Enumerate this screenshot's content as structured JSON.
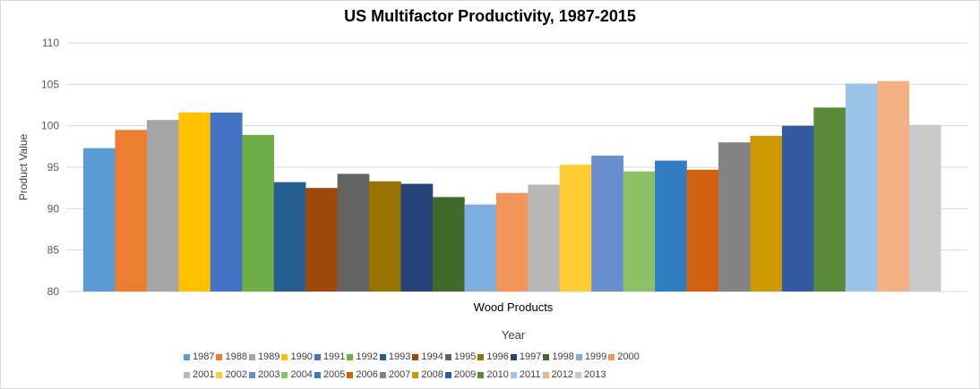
{
  "chart_data": {
    "type": "bar",
    "title": "US Multifactor Productivity, 1987-2015",
    "xlabel": "Year",
    "ylabel": "Product Value",
    "categories": [
      "Wood Products"
    ],
    "ylim": [
      80,
      110
    ],
    "yticks": [
      "80",
      "85",
      "90",
      "95",
      "100",
      "105",
      "110"
    ],
    "grid": true,
    "legend_position": "bottom",
    "series": [
      {
        "name": "1987",
        "values": [
          97.3
        ],
        "color": "#5b9bd5"
      },
      {
        "name": "1988",
        "values": [
          99.5
        ],
        "color": "#ed7d31"
      },
      {
        "name": "1989",
        "values": [
          100.7
        ],
        "color": "#a5a5a5"
      },
      {
        "name": "1990",
        "values": [
          101.6
        ],
        "color": "#ffc000"
      },
      {
        "name": "1991",
        "values": [
          101.6
        ],
        "color": "#4472c4"
      },
      {
        "name": "1992",
        "values": [
          98.9
        ],
        "color": "#70ad47"
      },
      {
        "name": "1993",
        "values": [
          93.2
        ],
        "color": "#255e91"
      },
      {
        "name": "1994",
        "values": [
          92.5
        ],
        "color": "#9e480e"
      },
      {
        "name": "1995",
        "values": [
          94.2
        ],
        "color": "#636363"
      },
      {
        "name": "1996",
        "values": [
          93.3
        ],
        "color": "#997300"
      },
      {
        "name": "1997",
        "values": [
          93.0
        ],
        "color": "#264478"
      },
      {
        "name": "1998",
        "values": [
          91.4
        ],
        "color": "#43682b"
      },
      {
        "name": "1999",
        "values": [
          90.5
        ],
        "color": "#7cafdd"
      },
      {
        "name": "2000",
        "values": [
          91.9
        ],
        "color": "#f1975a"
      },
      {
        "name": "2001",
        "values": [
          92.9
        ],
        "color": "#b7b7b7"
      },
      {
        "name": "2002",
        "values": [
          95.3
        ],
        "color": "#ffcd33"
      },
      {
        "name": "2003",
        "values": [
          96.4
        ],
        "color": "#698ed0"
      },
      {
        "name": "2004",
        "values": [
          94.5
        ],
        "color": "#8cc168"
      },
      {
        "name": "2005",
        "values": [
          95.8
        ],
        "color": "#327dc2"
      },
      {
        "name": "2006",
        "values": [
          94.7
        ],
        "color": "#d26012"
      },
      {
        "name": "2007",
        "values": [
          98.0
        ],
        "color": "#848484"
      },
      {
        "name": "2008",
        "values": [
          98.8
        ],
        "color": "#cc9a00"
      },
      {
        "name": "2009",
        "values": [
          100.0
        ],
        "color": "#335aa1"
      },
      {
        "name": "2010",
        "values": [
          102.2
        ],
        "color": "#5a8a39"
      },
      {
        "name": "2011",
        "values": [
          105.1
        ],
        "color": "#9dc3e6"
      },
      {
        "name": "2012",
        "values": [
          105.4
        ],
        "color": "#f4b183"
      },
      {
        "name": "2013",
        "values": [
          100.1
        ],
        "color": "#c9c9c9"
      }
    ]
  }
}
